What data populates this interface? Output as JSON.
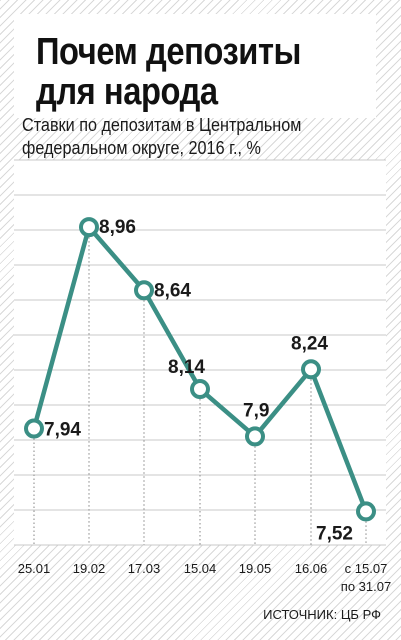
{
  "title_lines": [
    "Почем депозиты",
    "для народа"
  ],
  "subtitle_lines": [
    "Ставки по депозитам в Центральном",
    "федеральном округе, 2016 г., %"
  ],
  "source": "ИСТОЧНИК: ЦБ РФ",
  "colors": {
    "line": "#3b8f85",
    "grid": "#c8c8c8",
    "drop": "#9a9a9a"
  },
  "chart_data": {
    "type": "line",
    "title": "Почем депозиты для народа",
    "subtitle": "Ставки по депозитам в Центральном федеральном округе, 2016 г., %",
    "categories": [
      "25.01",
      "19.02",
      "17.03",
      "15.04",
      "19.05",
      "16.06",
      "с 15.07 по 31.07"
    ],
    "tick_lines": [
      [
        "25.01"
      ],
      [
        "19.02"
      ],
      [
        "17.03"
      ],
      [
        "15.04"
      ],
      [
        "19.05"
      ],
      [
        "16.06"
      ],
      [
        "с 15.07",
        "по 31.07"
      ]
    ],
    "series": [
      {
        "values": [
          7.94,
          8.96,
          8.64,
          8.14,
          7.9,
          8.24,
          7.52
        ],
        "labels": [
          "7,94",
          "8,96",
          "8,64",
          "8,14",
          "7,9",
          "8,24",
          "7,52"
        ]
      }
    ],
    "ylim": [
      7.35,
      9.3
    ],
    "grid": true,
    "xlabel": "",
    "ylabel": ""
  }
}
